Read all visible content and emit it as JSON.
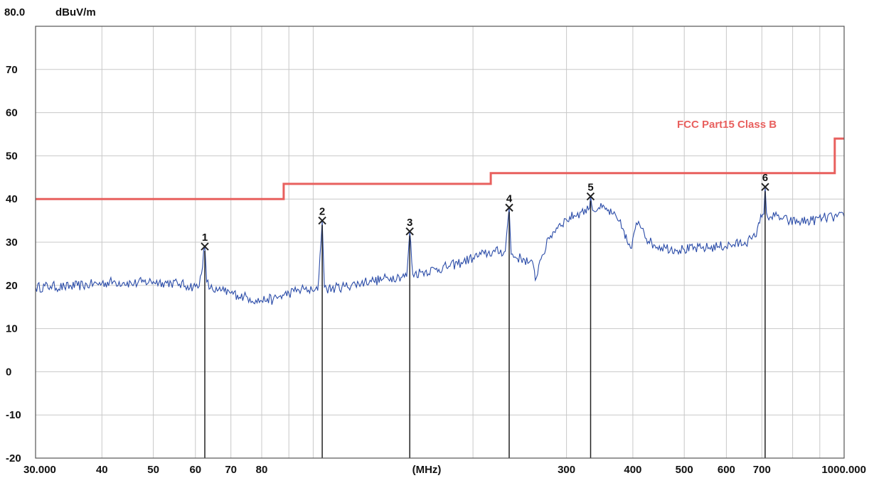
{
  "chart_data": {
    "type": "line",
    "ylabel": "dBuV/m",
    "y_top_label": "80.0",
    "xlabel": "(MHz)",
    "x_scale": "log",
    "xlim": [
      30,
      1000
    ],
    "ylim": [
      -20,
      80
    ],
    "grid": true,
    "y_ticks": [
      70,
      60,
      50,
      40,
      30,
      20,
      10,
      0,
      -10,
      -20
    ],
    "x_ticks": [
      {
        "value": 30,
        "label": "30.000"
      },
      {
        "value": 40,
        "label": "40"
      },
      {
        "value": 50,
        "label": "50"
      },
      {
        "value": 60,
        "label": "60"
      },
      {
        "value": 70,
        "label": "70"
      },
      {
        "value": 80,
        "label": "80"
      },
      {
        "value": 300,
        "label": "300"
      },
      {
        "value": 400,
        "label": "400"
      },
      {
        "value": 500,
        "label": "500"
      },
      {
        "value": 600,
        "label": "600"
      },
      {
        "value": 700,
        "label": "700"
      },
      {
        "value": 1000,
        "label": "1000.000"
      }
    ],
    "limit_line": {
      "name": "FCC Part15 Class B",
      "color": "#e8605e",
      "points": [
        [
          30,
          40
        ],
        [
          88,
          40
        ],
        [
          88,
          43.5
        ],
        [
          216,
          43.5
        ],
        [
          216,
          46
        ],
        [
          960,
          46
        ],
        [
          960,
          54
        ],
        [
          1000,
          54
        ]
      ]
    },
    "series": [
      {
        "color": "#2b4ca8",
        "points": [
          [
            30,
            19.5
          ],
          [
            32,
            19.8
          ],
          [
            34,
            19.6
          ],
          [
            36,
            19.9
          ],
          [
            38,
            20.2
          ],
          [
            40,
            20.5
          ],
          [
            42,
            20.8
          ],
          [
            44,
            20.7
          ],
          [
            46,
            20.4
          ],
          [
            48,
            20.8
          ],
          [
            50,
            20.9
          ],
          [
            52,
            20.7
          ],
          [
            54,
            20.6
          ],
          [
            56,
            20.3
          ],
          [
            58,
            19.9
          ],
          [
            60,
            19.7
          ],
          [
            61,
            19.8
          ],
          [
            62.5,
            29.0
          ],
          [
            63,
            20.8
          ],
          [
            64,
            19.3
          ],
          [
            66,
            18.7
          ],
          [
            68,
            18.6
          ],
          [
            70,
            18.2
          ],
          [
            72,
            17.8
          ],
          [
            74,
            17.4
          ],
          [
            76,
            17.0
          ],
          [
            78,
            16.6
          ],
          [
            80,
            16.4
          ],
          [
            82,
            16.9
          ],
          [
            84,
            16.6
          ],
          [
            86,
            17.3
          ],
          [
            88,
            17.7
          ],
          [
            90,
            18.2
          ],
          [
            92,
            18.6
          ],
          [
            94,
            18.9
          ],
          [
            96,
            19.2
          ],
          [
            98,
            18.9
          ],
          [
            100,
            18.6
          ],
          [
            102,
            18.8
          ],
          [
            104,
            35.0
          ],
          [
            105,
            19.6
          ],
          [
            106,
            19.2
          ],
          [
            110,
            19.4
          ],
          [
            115,
            19.8
          ],
          [
            120,
            20.3
          ],
          [
            125,
            20.8
          ],
          [
            128,
            21.2
          ],
          [
            130,
            21.0
          ],
          [
            135,
            21.4
          ],
          [
            140,
            21.8
          ],
          [
            145,
            22.1
          ],
          [
            150,
            22.0
          ],
          [
            152,
            32.5
          ],
          [
            154,
            22.6
          ],
          [
            160,
            23.1
          ],
          [
            170,
            23.7
          ],
          [
            180,
            24.4
          ],
          [
            190,
            25.3
          ],
          [
            200,
            26.4
          ],
          [
            210,
            27.3
          ],
          [
            220,
            27.8
          ],
          [
            230,
            27.9
          ],
          [
            234,
            38.0
          ],
          [
            236,
            27.2
          ],
          [
            240,
            26.6
          ],
          [
            250,
            26.0
          ],
          [
            255,
            25.3
          ],
          [
            260,
            24.5
          ],
          [
            262,
            21.2
          ],
          [
            266,
            24.7
          ],
          [
            270,
            27.0
          ],
          [
            280,
            31.5
          ],
          [
            290,
            34.0
          ],
          [
            300,
            35.2
          ],
          [
            310,
            36.2
          ],
          [
            320,
            37.0
          ],
          [
            330,
            37.5
          ],
          [
            333,
            40.6
          ],
          [
            336,
            37.4
          ],
          [
            345,
            38.0
          ],
          [
            355,
            37.6
          ],
          [
            365,
            36.6
          ],
          [
            375,
            35.0
          ],
          [
            385,
            32.6
          ],
          [
            392,
            29.4
          ],
          [
            398,
            28.6
          ],
          [
            404,
            33.0
          ],
          [
            410,
            34.8
          ],
          [
            418,
            33.2
          ],
          [
            428,
            30.2
          ],
          [
            440,
            29.3
          ],
          [
            460,
            28.8
          ],
          [
            480,
            28.4
          ],
          [
            500,
            28.3
          ],
          [
            540,
            28.6
          ],
          [
            580,
            29.0
          ],
          [
            620,
            29.4
          ],
          [
            650,
            30.0
          ],
          [
            670,
            30.7
          ],
          [
            680,
            31.2
          ],
          [
            690,
            34.5
          ],
          [
            700,
            35.8
          ],
          [
            706,
            36.5
          ],
          [
            710,
            42.8
          ],
          [
            714,
            36.8
          ],
          [
            725,
            35.8
          ],
          [
            740,
            36.0
          ],
          [
            760,
            35.6
          ],
          [
            790,
            34.8
          ],
          [
            830,
            34.8
          ],
          [
            870,
            35.0
          ],
          [
            910,
            35.6
          ],
          [
            950,
            35.8
          ],
          [
            1000,
            35.9
          ]
        ]
      }
    ],
    "markers": [
      {
        "label": "1",
        "x": 62.5,
        "y": 29.0
      },
      {
        "label": "2",
        "x": 104,
        "y": 35.0
      },
      {
        "label": "3",
        "x": 152,
        "y": 32.5
      },
      {
        "label": "4",
        "x": 234,
        "y": 38.0
      },
      {
        "label": "5",
        "x": 333,
        "y": 40.6
      },
      {
        "label": "6",
        "x": 710,
        "y": 42.8
      }
    ]
  }
}
